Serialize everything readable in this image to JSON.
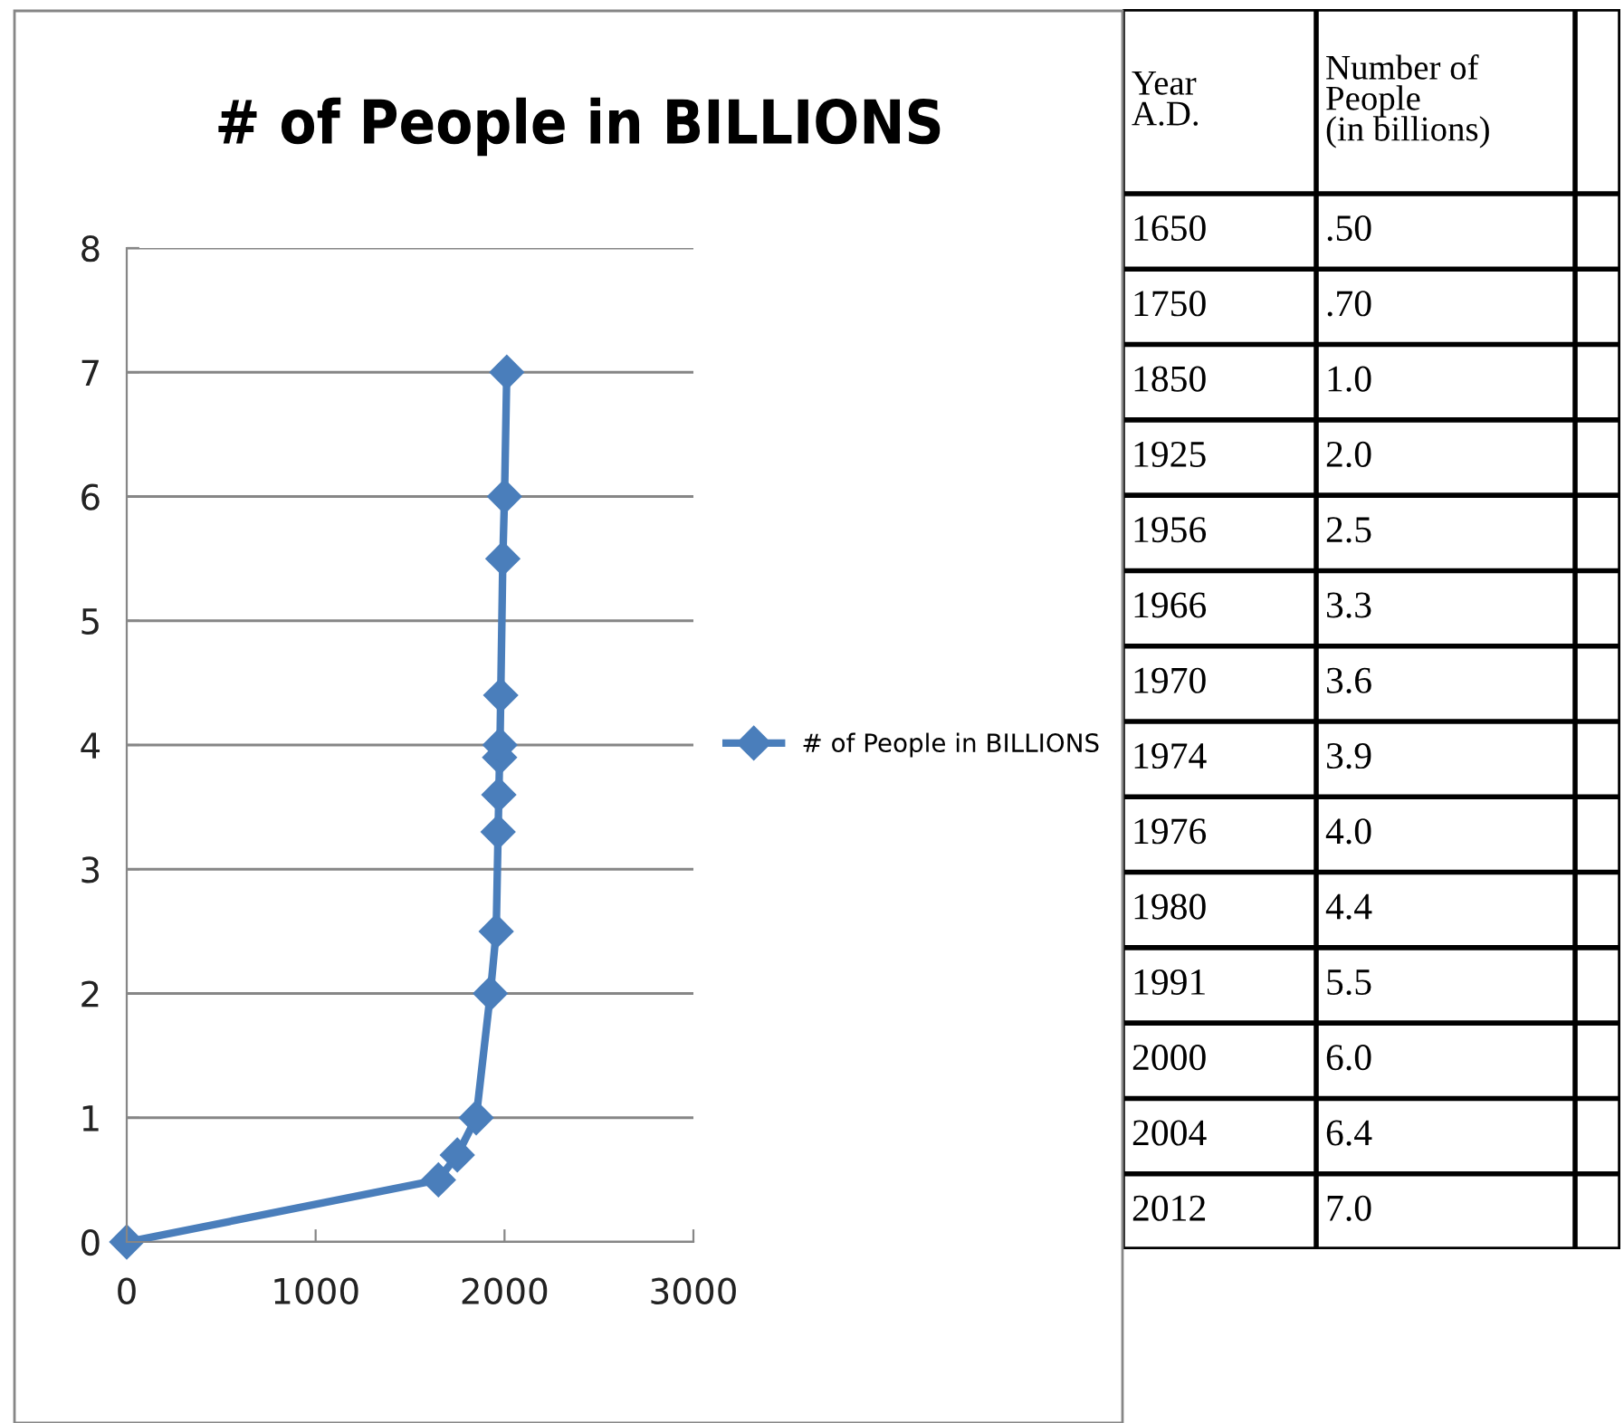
{
  "chart_data": [
    {
      "type": "line",
      "title": "# of People in BILLIONS",
      "x": [
        0,
        1650,
        1750,
        1850,
        1925,
        1956,
        1966,
        1970,
        1974,
        1976,
        1980,
        1991,
        2000,
        2012
      ],
      "series": [
        {
          "name": "# of People in BILLIONS",
          "color": "#4a7ebb",
          "values": [
            0,
            0.5,
            0.7,
            1.0,
            2.0,
            2.5,
            3.3,
            3.6,
            3.9,
            4.0,
            4.4,
            5.5,
            6.0,
            7.0
          ]
        }
      ],
      "xlim": [
        0,
        3000
      ],
      "xticks": [
        0,
        1000,
        2000,
        3000
      ],
      "ylim": [
        0,
        8
      ],
      "yticks": [
        0,
        1,
        2,
        3,
        4,
        5,
        6,
        7,
        8
      ],
      "grid": "y",
      "legend": "right",
      "marker": "diamond",
      "line_style": "solid"
    },
    {
      "type": "other",
      "annotations": [
        "Year\nA.D.",
        "Number of\nPeople\n(in billions)",
        "1650",
        ".50",
        "1750",
        ".70",
        "1850",
        "1.0",
        "1925",
        "2.0",
        "1956",
        "2.5",
        "1966",
        "3.3",
        "1970",
        "3.6",
        "1974",
        "3.9",
        "1976",
        "4.0",
        "1980",
        "4.4",
        "1991",
        "5.5",
        "2000",
        "6.0",
        "2004",
        "6.4",
        "2012",
        "7.0"
      ]
    }
  ]
}
